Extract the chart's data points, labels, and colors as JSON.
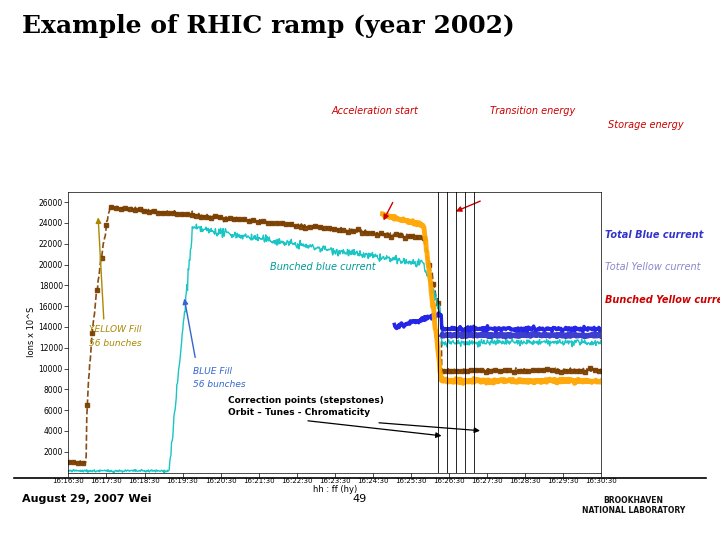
{
  "title": "Example of RHIC ramp (year 2002)",
  "title_fontsize": 18,
  "title_fontweight": "bold",
  "background_color": "#ffffff",
  "plot_bg_color": "#ffffff",
  "xlabel": "hh : ff (hy)",
  "ylabel": "Ions x 10^S",
  "xlim": [
    0,
    90
  ],
  "ylim": [
    0,
    27000
  ],
  "ytick_vals": [
    2000,
    4000,
    6000,
    8000,
    10000,
    12000,
    14000,
    16000,
    18000,
    20000,
    22000,
    24000,
    26000
  ],
  "ytick_labels": [
    "2000",
    "4000",
    "6000",
    "8000",
    "10000",
    "12000",
    "14000",
    "16000",
    "18000",
    "20000",
    "22000",
    "24000",
    "26000"
  ],
  "xtick_labels": [
    "16:16:30",
    "16:17:30",
    "16:18:30",
    "16:19:30",
    "16:20:30",
    "16:21:30",
    "16:22:30",
    "16:23:30",
    "16:24:30",
    "16:25:30",
    "16:26:30",
    "16:27:30",
    "16:28:30",
    "16:29:30",
    "16:30:30"
  ],
  "colors": {
    "brown": "#7B3F00",
    "cyan": "#00BFBF",
    "blue_total": "#3333CC",
    "orange": "#FFA500",
    "dark_blue_bunched": "#1A1AE6",
    "annotation_red": "#CC0000",
    "label_yellow": "#AA8800",
    "label_blue": "#3366CC",
    "label_cyan": "#009999",
    "label_total_blue": "#3333CC",
    "label_total_yellow": "#8888CC",
    "label_bunched_yellow": "#CC0000"
  },
  "footer_text": "August 29, 2007 Wei",
  "page_num": "49"
}
